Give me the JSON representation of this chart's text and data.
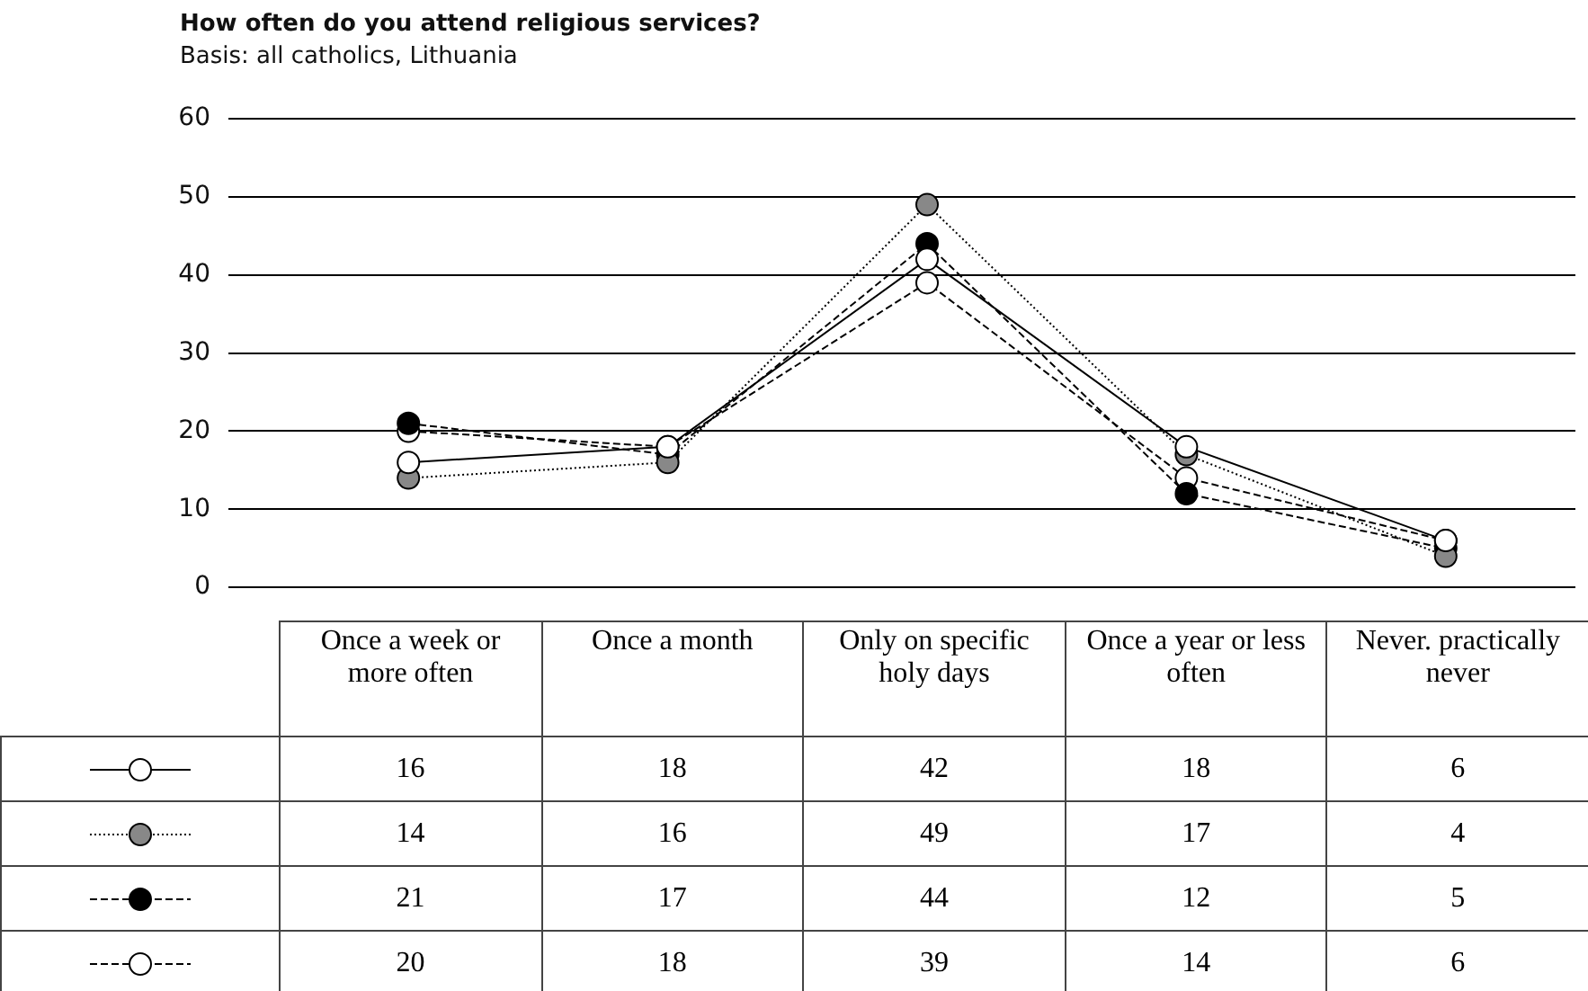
{
  "chart_data": {
    "type": "line",
    "title": "How often do you attend religious services?",
    "subtitle": "Basis: all catholics, Lithuania",
    "categories": [
      "Once a week or more often",
      "Once a month",
      "Only on specific holy days",
      "Once a year or less often",
      "Never. practically never"
    ],
    "series": [
      {
        "color": "#ffffff",
        "line_style": "solid",
        "values": [
          16,
          18,
          42,
          18,
          6
        ]
      },
      {
        "color": "#888888",
        "line_style": "dotted",
        "values": [
          14,
          16,
          49,
          17,
          4
        ]
      },
      {
        "color": "#000000",
        "line_style": "dashed",
        "values": [
          21,
          17,
          44,
          12,
          5
        ]
      },
      {
        "color": "#ffffff",
        "line_style": "dashed",
        "values": [
          20,
          18,
          39,
          14,
          6
        ]
      }
    ],
    "ylim": [
      0,
      60
    ],
    "yticks": [
      0,
      10,
      20,
      30,
      40,
      50,
      60
    ],
    "grid": "y",
    "marker": "circle",
    "data_labels": true,
    "tick_labels": "y"
  }
}
